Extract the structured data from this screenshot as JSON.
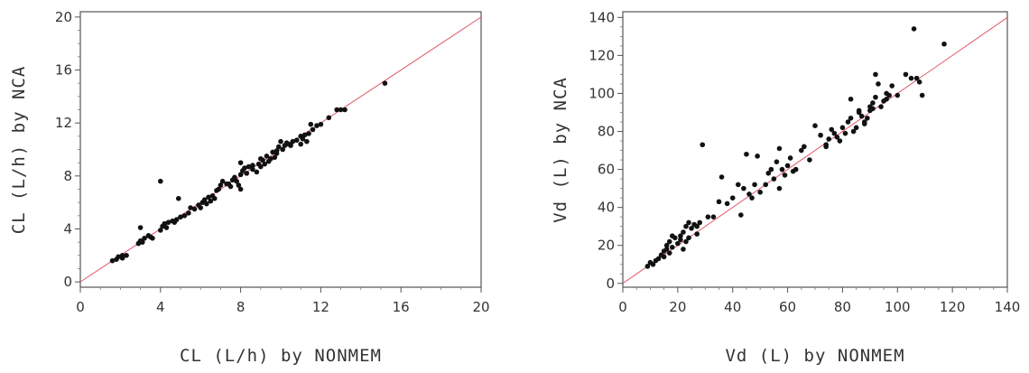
{
  "chart_data": [
    {
      "type": "scatter",
      "title": "",
      "xlabel": "CL (L/h) by NONMEM",
      "ylabel": "CL (L/h) by NCA",
      "xlim": [
        0,
        20
      ],
      "ylim": [
        -0.4,
        20.4
      ],
      "xticks": [
        "0",
        "4",
        "8",
        "12",
        "16",
        "20"
      ],
      "yticks": [
        "0",
        "4",
        "8",
        "12",
        "16",
        "20"
      ],
      "reference_line": "identity (y = x)",
      "reference_color": "#e05a6a",
      "marker_color": "#111111",
      "grid": false,
      "points": [
        [
          1.6,
          1.6
        ],
        [
          1.8,
          1.7
        ],
        [
          1.9,
          1.9
        ],
        [
          2.1,
          2.0
        ],
        [
          2.3,
          2.0
        ],
        [
          2.1,
          1.8
        ],
        [
          2.9,
          2.9
        ],
        [
          3.0,
          3.1
        ],
        [
          3.1,
          3.0
        ],
        [
          3.2,
          3.3
        ],
        [
          3.4,
          3.5
        ],
        [
          3.5,
          3.4
        ],
        [
          3.6,
          3.3
        ],
        [
          3.0,
          4.1
        ],
        [
          4.0,
          3.9
        ],
        [
          4.1,
          4.2
        ],
        [
          4.2,
          4.4
        ],
        [
          4.3,
          4.1
        ],
        [
          4.4,
          4.5
        ],
        [
          4.6,
          4.6
        ],
        [
          4.7,
          4.5
        ],
        [
          4.8,
          4.7
        ],
        [
          4.0,
          7.6
        ],
        [
          4.9,
          6.3
        ],
        [
          5.0,
          4.9
        ],
        [
          5.2,
          5.0
        ],
        [
          5.4,
          5.2
        ],
        [
          5.5,
          5.6
        ],
        [
          5.7,
          5.5
        ],
        [
          5.9,
          5.8
        ],
        [
          6.0,
          5.6
        ],
        [
          6.1,
          6.0
        ],
        [
          6.2,
          6.2
        ],
        [
          6.3,
          5.9
        ],
        [
          6.4,
          6.4
        ],
        [
          6.5,
          6.1
        ],
        [
          6.6,
          6.5
        ],
        [
          6.7,
          6.3
        ],
        [
          6.8,
          6.9
        ],
        [
          7.0,
          7.3
        ],
        [
          7.1,
          7.6
        ],
        [
          7.3,
          7.4
        ],
        [
          7.5,
          7.2
        ],
        [
          7.6,
          7.7
        ],
        [
          7.7,
          7.9
        ],
        [
          7.8,
          7.6
        ],
        [
          7.9,
          7.3
        ],
        [
          8.0,
          8.1
        ],
        [
          8.0,
          7.0
        ],
        [
          8.1,
          8.4
        ],
        [
          8.2,
          8.6
        ],
        [
          8.0,
          9.0
        ],
        [
          8.3,
          8.2
        ],
        [
          8.4,
          8.7
        ],
        [
          8.6,
          8.5
        ],
        [
          8.8,
          8.3
        ],
        [
          8.9,
          8.9
        ],
        [
          9.0,
          8.7
        ],
        [
          9.1,
          9.2
        ],
        [
          9.2,
          8.9
        ],
        [
          9.3,
          9.5
        ],
        [
          9.4,
          9.1
        ],
        [
          9.5,
          9.3
        ],
        [
          9.6,
          9.8
        ],
        [
          9.7,
          9.4
        ],
        [
          9.8,
          9.7
        ],
        [
          9.9,
          10.2
        ],
        [
          10.0,
          10.6
        ],
        [
          10.1,
          10.0
        ],
        [
          10.2,
          10.3
        ],
        [
          10.3,
          10.5
        ],
        [
          10.5,
          10.3
        ],
        [
          10.6,
          10.6
        ],
        [
          10.8,
          10.7
        ],
        [
          11.0,
          10.4
        ],
        [
          11.1,
          10.8
        ],
        [
          11.2,
          11.1
        ],
        [
          11.3,
          10.6
        ],
        [
          11.4,
          11.2
        ],
        [
          11.5,
          11.9
        ],
        [
          11.6,
          11.5
        ],
        [
          11.8,
          11.8
        ],
        [
          12.0,
          11.9
        ],
        [
          12.4,
          12.4
        ],
        [
          12.8,
          13.0
        ],
        [
          13.0,
          13.0
        ],
        [
          13.2,
          13.0
        ],
        [
          15.2,
          15.0
        ],
        [
          8.6,
          8.8
        ],
        [
          9.0,
          9.3
        ],
        [
          10.4,
          10.4
        ],
        [
          11.0,
          11.0
        ],
        [
          9.8,
          9.9
        ],
        [
          7.4,
          7.4
        ],
        [
          6.9,
          7.0
        ]
      ]
    },
    {
      "type": "scatter",
      "title": "",
      "xlabel": "Vd (L) by NONMEM",
      "ylabel": "Vd (L) by NCA",
      "xlim": [
        0,
        140
      ],
      "ylim": [
        -2,
        143
      ],
      "xticks": [
        "0",
        "20",
        "40",
        "60",
        "80",
        "100",
        "120",
        "140"
      ],
      "yticks": [
        "0",
        "20",
        "40",
        "60",
        "80",
        "100",
        "120",
        "140"
      ],
      "reference_line": "identity (y = x)",
      "reference_color": "#e05a6a",
      "marker_color": "#111111",
      "grid": false,
      "points": [
        [
          9,
          9
        ],
        [
          10,
          11
        ],
        [
          11,
          10
        ],
        [
          12,
          12
        ],
        [
          13,
          13
        ],
        [
          14,
          15
        ],
        [
          15,
          14
        ],
        [
          15,
          17
        ],
        [
          16,
          18
        ],
        [
          16,
          20
        ],
        [
          17,
          16
        ],
        [
          17,
          22
        ],
        [
          18,
          19
        ],
        [
          18,
          25
        ],
        [
          19,
          24
        ],
        [
          20,
          21
        ],
        [
          21,
          25
        ],
        [
          21,
          23
        ],
        [
          22,
          18
        ],
        [
          22,
          27
        ],
        [
          23,
          22
        ],
        [
          23,
          30
        ],
        [
          24,
          24
        ],
        [
          24,
          32
        ],
        [
          25,
          29
        ],
        [
          26,
          31
        ],
        [
          27,
          26
        ],
        [
          27,
          30
        ],
        [
          28,
          32
        ],
        [
          29,
          73
        ],
        [
          31,
          35
        ],
        [
          33,
          35
        ],
        [
          35,
          43
        ],
        [
          36,
          56
        ],
        [
          38,
          42
        ],
        [
          40,
          45
        ],
        [
          42,
          52
        ],
        [
          43,
          36
        ],
        [
          44,
          50
        ],
        [
          45,
          68
        ],
        [
          46,
          47
        ],
        [
          47,
          45
        ],
        [
          48,
          52
        ],
        [
          49,
          67
        ],
        [
          50,
          48
        ],
        [
          52,
          52
        ],
        [
          53,
          58
        ],
        [
          54,
          60
        ],
        [
          55,
          55
        ],
        [
          56,
          64
        ],
        [
          57,
          50
        ],
        [
          58,
          60
        ],
        [
          59,
          57
        ],
        [
          60,
          62
        ],
        [
          61,
          66
        ],
        [
          62,
          59
        ],
        [
          63,
          60
        ],
        [
          65,
          70
        ],
        [
          66,
          72
        ],
        [
          68,
          65
        ],
        [
          70,
          83
        ],
        [
          72,
          78
        ],
        [
          74,
          73
        ],
        [
          75,
          76
        ],
        [
          76,
          81
        ],
        [
          77,
          79
        ],
        [
          78,
          77
        ],
        [
          79,
          75
        ],
        [
          80,
          82
        ],
        [
          81,
          79
        ],
        [
          82,
          85
        ],
        [
          83,
          87
        ],
        [
          84,
          80
        ],
        [
          85,
          82
        ],
        [
          86,
          90
        ],
        [
          87,
          88
        ],
        [
          88,
          84
        ],
        [
          89,
          87
        ],
        [
          90,
          91
        ],
        [
          91,
          95
        ],
        [
          92,
          98
        ],
        [
          93,
          105
        ],
        [
          92,
          110
        ],
        [
          94,
          93
        ],
        [
          95,
          96
        ],
        [
          96,
          100
        ],
        [
          97,
          99
        ],
        [
          98,
          104
        ],
        [
          100,
          99
        ],
        [
          103,
          110
        ],
        [
          105,
          108
        ],
        [
          106,
          134
        ],
        [
          107,
          108
        ],
        [
          108,
          106
        ],
        [
          109,
          99
        ],
        [
          117,
          126
        ],
        [
          57,
          71
        ],
        [
          83,
          97
        ],
        [
          90,
          93
        ],
        [
          88,
          85
        ],
        [
          74,
          72
        ],
        [
          86,
          91
        ],
        [
          96,
          97
        ],
        [
          91,
          92
        ]
      ]
    }
  ]
}
